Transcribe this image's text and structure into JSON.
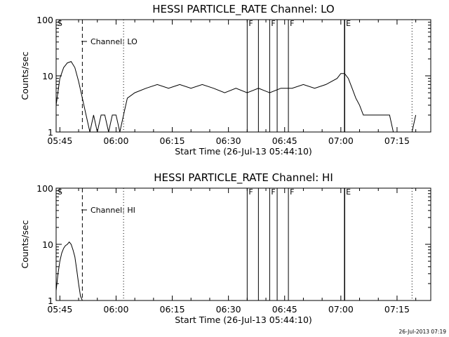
{
  "chart_data": [
    {
      "type": "line",
      "title": "HESSI PARTICLE_RATE Channel: LO",
      "xlabel": "Start Time (26-Jul-13 05:44:10)",
      "ylabel": "Counts/sec",
      "yscale": "log",
      "ylim": [
        1,
        100
      ],
      "xlim": [
        "05:44",
        "07:24"
      ],
      "xticks": [
        "05:45",
        "06:00",
        "06:15",
        "06:30",
        "06:45",
        "07:00",
        "07:15"
      ],
      "yticks": [
        "1",
        "10",
        "100"
      ],
      "legend": {
        "label": "Channel: LO",
        "position": "top-left"
      },
      "series": [
        {
          "name": "Channel: LO",
          "x": [
            "05:44",
            "05:45",
            "05:46",
            "05:47",
            "05:48",
            "05:49",
            "05:50",
            "05:51",
            "05:52",
            "05:53",
            "05:54",
            "05:55",
            "05:56",
            "05:57",
            "05:58",
            "05:59",
            "06:00",
            "06:01",
            "06:02",
            "06:03",
            "06:05",
            "06:08",
            "06:11",
            "06:14",
            "06:17",
            "06:20",
            "06:23",
            "06:26",
            "06:29",
            "06:32",
            "06:35",
            "06:38",
            "06:41",
            "06:44",
            "06:47",
            "06:50",
            "06:53",
            "06:56",
            "06:59",
            "07:00",
            "07:01",
            "07:02",
            "07:03",
            "07:04",
            "07:05",
            "07:06",
            "07:07",
            "07:08",
            "07:09",
            "07:10",
            "07:11",
            "07:12",
            "07:13",
            "07:14",
            "07:15",
            "07:16",
            "07:17",
            "07:18",
            "07:19",
            "07:20"
          ],
          "values": [
            3,
            9,
            14,
            17,
            18,
            14,
            8,
            4,
            2,
            1,
            2,
            1,
            2,
            2,
            1,
            2,
            2,
            1,
            2,
            4,
            5,
            6,
            7,
            6,
            7,
            6,
            7,
            6,
            5,
            6,
            5,
            6,
            5,
            6,
            6,
            7,
            6,
            7,
            9,
            11,
            11,
            9,
            6,
            4,
            3,
            2,
            2,
            2,
            2,
            2,
            2,
            2,
            2,
            1,
            1,
            1,
            1,
            1,
            1,
            2
          ]
        }
      ]
    },
    {
      "type": "line",
      "title": "HESSI PARTICLE_RATE Channel: HI",
      "xlabel": "Start Time (26-Jul-13 05:44:10)",
      "ylabel": "Counts/sec",
      "yscale": "log",
      "ylim": [
        1,
        100
      ],
      "xlim": [
        "05:44",
        "07:24"
      ],
      "xticks": [
        "05:45",
        "06:00",
        "06:15",
        "06:30",
        "06:45",
        "07:00",
        "07:15"
      ],
      "yticks": [
        "1",
        "10",
        "100"
      ],
      "legend": {
        "label": "Channel: HI",
        "position": "top-left"
      },
      "series": [
        {
          "name": "Channel: HI",
          "x": [
            "05:44",
            "05:44:30",
            "05:45",
            "05:45:30",
            "05:46",
            "05:46:30",
            "05:47",
            "05:47:30",
            "05:48",
            "05:48:30",
            "05:49",
            "05:49:30",
            "05:50",
            "05:50:30",
            "05:51"
          ],
          "values": [
            1.5,
            3,
            5,
            7,
            8.5,
            9.5,
            10,
            11,
            10,
            8,
            6,
            3.5,
            2,
            1.2,
            1
          ]
        }
      ]
    }
  ],
  "annotations": {
    "s_marker": {
      "label": "S",
      "time": "05:44:10"
    },
    "dashed_line": {
      "time": "05:51"
    },
    "dotted_lines": [
      "06:02",
      "07:19"
    ],
    "flag_lines": [
      {
        "label": "F",
        "time": "06:35"
      },
      {
        "label": "",
        "time": "06:38"
      },
      {
        "label": "F",
        "time": "06:41"
      },
      {
        "label": "",
        "time": "06:43"
      },
      {
        "label": "F",
        "time": "06:46"
      }
    ],
    "e_marker": {
      "label": "E",
      "time": "07:01"
    }
  },
  "footer": {
    "timestamp": "26-Jul-2013 07:19"
  }
}
